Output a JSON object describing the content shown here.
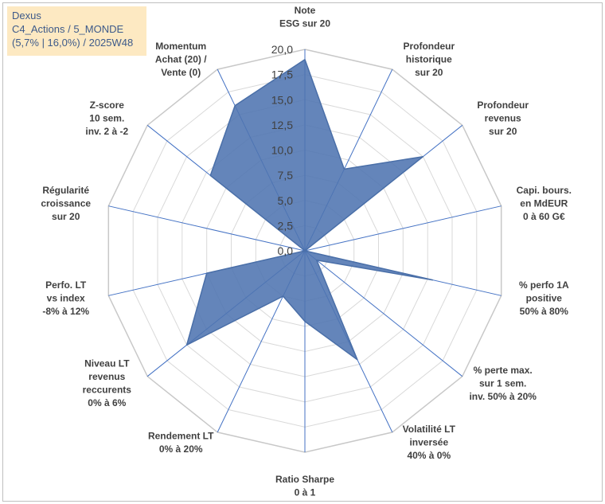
{
  "info_box": {
    "line1": "Dexus",
    "line2": "C4_Actions / 5_MONDE",
    "line3": "(5,7% | 16,0%) / 2025W48"
  },
  "colors": {
    "fill": "#4f74b0",
    "stroke": "#4a6fa8",
    "axis": "#4472c4",
    "grid": "#d9d9d9"
  },
  "chart_data": {
    "type": "radar",
    "title": "",
    "rmin": 0,
    "rmax": 20,
    "tick_labels": [
      "0,0",
      "2,5",
      "5,0",
      "7,5",
      "10,0",
      "12,5",
      "15,0",
      "17,5",
      "20,0"
    ],
    "axes": [
      {
        "label_lines": [
          "Note",
          "ESG sur 20"
        ],
        "value": 19.0
      },
      {
        "label_lines": [
          "Profondeur",
          "historique",
          "sur 20"
        ],
        "value": 9.0
      },
      {
        "label_lines": [
          "Profondeur",
          "revenus",
          "sur 20"
        ],
        "value": 15.0
      },
      {
        "label_lines": [
          "Capi. bours.",
          "en MdEUR",
          "0 à 60 G€"
        ],
        "value": 0.0
      },
      {
        "label_lines": [
          "% perfo 1A",
          "positive",
          "50% à 80%"
        ],
        "value": 13.0
      },
      {
        "label_lines": [
          "% perte max.",
          "sur 1 sem.",
          "inv. 50% à 20%"
        ],
        "value": 1.5
      },
      {
        "label_lines": [
          "Volatilité LT",
          "inversée",
          "40% à 0%"
        ],
        "value": 12.0
      },
      {
        "label_lines": [
          "Ratio Sharpe",
          "0 à 1"
        ],
        "value": 7.0
      },
      {
        "label_lines": [
          "Rendement LT",
          "0% à 20%"
        ],
        "value": 5.0
      },
      {
        "label_lines": [
          "Niveau LT",
          "revenus",
          "reccurents",
          "0% à 6%"
        ],
        "value": 15.0
      },
      {
        "label_lines": [
          "Perfo. LT",
          "vs index",
          "-8% à 12%"
        ],
        "value": 10.0
      },
      {
        "label_lines": [
          "Régularité",
          "croissance",
          "sur 20"
        ],
        "value": 0.0
      },
      {
        "label_lines": [
          "Z-score",
          "10 sem.",
          "inv. 2 à -2"
        ],
        "value": 12.0
      },
      {
        "label_lines": [
          "Momentum",
          "Achat (20) /",
          "Vente (0)"
        ],
        "value": 16.0
      }
    ]
  }
}
